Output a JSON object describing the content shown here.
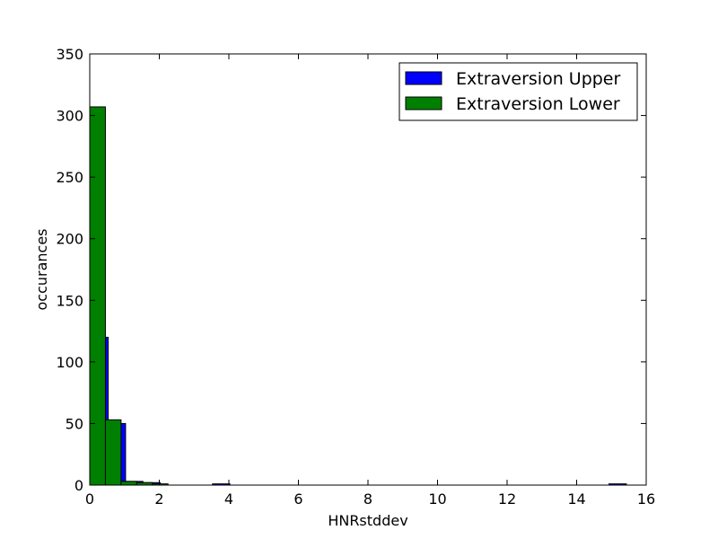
{
  "chart_data": {
    "type": "bar",
    "title": "",
    "xlabel": "HNRstddev",
    "ylabel": "occurances",
    "xlim": [
      0,
      16
    ],
    "ylim": [
      0,
      350
    ],
    "xticks": [
      0,
      2,
      4,
      6,
      8,
      10,
      12,
      14,
      16
    ],
    "yticks": [
      0,
      50,
      100,
      150,
      200,
      250,
      300,
      350
    ],
    "xtick_labels": [
      "0",
      "2",
      "4",
      "6",
      "8",
      "10",
      "12",
      "14",
      "16"
    ],
    "ytick_labels": [
      "0",
      "50",
      "100",
      "150",
      "200",
      "250",
      "300",
      "350"
    ],
    "grid": false,
    "legend_position": "top-right",
    "series": [
      {
        "name": "Extraversion Upper",
        "color": "#0000ff",
        "bins": [
          {
            "x0": 0.03,
            "x1": 0.53,
            "count": 120
          },
          {
            "x0": 0.53,
            "x1": 1.03,
            "count": 50
          },
          {
            "x0": 1.03,
            "x1": 1.53,
            "count": 3
          },
          {
            "x0": 1.53,
            "x1": 2.03,
            "count": 2
          },
          {
            "x0": 2.03,
            "x1": 2.53,
            "count": 0
          },
          {
            "x0": 2.53,
            "x1": 3.03,
            "count": 0
          },
          {
            "x0": 3.03,
            "x1": 3.53,
            "count": 0
          },
          {
            "x0": 3.53,
            "x1": 4.03,
            "count": 1
          },
          {
            "x0": 4.03,
            "x1": 4.53,
            "count": 0
          },
          {
            "x0": 14.93,
            "x1": 15.43,
            "count": 1
          }
        ]
      },
      {
        "name": "Extraversion Lower",
        "color": "#008000",
        "bins": [
          {
            "x0": 0.0,
            "x1": 0.45,
            "count": 307
          },
          {
            "x0": 0.45,
            "x1": 0.9,
            "count": 53
          },
          {
            "x0": 0.9,
            "x1": 1.35,
            "count": 3
          },
          {
            "x0": 1.35,
            "x1": 1.8,
            "count": 2
          },
          {
            "x0": 1.8,
            "x1": 2.25,
            "count": 1
          },
          {
            "x0": 2.25,
            "x1": 2.7,
            "count": 0
          },
          {
            "x0": 2.7,
            "x1": 3.15,
            "count": 0
          },
          {
            "x0": 3.15,
            "x1": 3.6,
            "count": 0
          },
          {
            "x0": 3.6,
            "x1": 4.05,
            "count": 0
          },
          {
            "x0": 4.05,
            "x1": 4.5,
            "count": 0
          }
        ]
      }
    ]
  }
}
